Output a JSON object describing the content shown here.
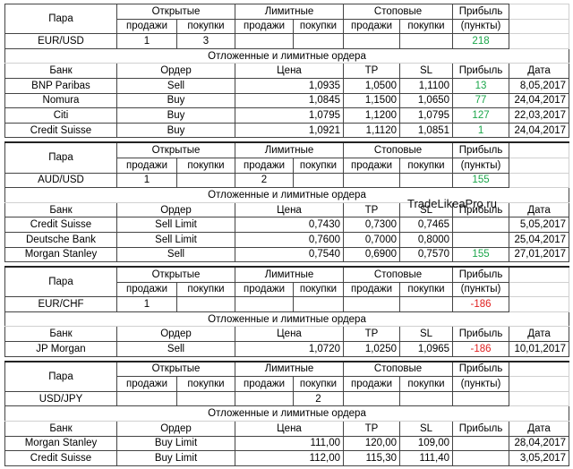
{
  "blocks": [
    {
      "header_row1": [
        "Пара",
        "Открытые",
        "Лимитные",
        "Стоповые",
        "Прибыль"
      ],
      "header_row2": [
        "продажи",
        "покупки",
        "продажи",
        "покупки",
        "продажи",
        "покупки",
        "(пункты)"
      ],
      "pair_row": [
        "EUR/USD",
        "1",
        "3",
        null,
        null,
        null,
        null,
        "218"
      ],
      "orders_title": "Отложенные и лимитные ордера",
      "orders_header": [
        "Банк",
        "Ордер",
        "Цена",
        "TP",
        "SL",
        "Прибыль",
        "Дата"
      ],
      "orders": [
        [
          "BNP Paribas",
          "Sell",
          "1,0935",
          "1,0500",
          "1,1100",
          "13",
          "8,05,2017"
        ],
        [
          "Nomura",
          "Buy",
          "1,0845",
          "1,1500",
          "1,0650",
          "77",
          "24,04,2017"
        ],
        [
          "Citi",
          "Buy",
          "1,0795",
          "1,1200",
          "1,0795",
          "127",
          "22,03,2017"
        ],
        [
          "Credit Suisse",
          "Buy",
          "1,0921",
          "1,1120",
          "1,0851",
          "1",
          "24,04,2017"
        ]
      ]
    },
    {
      "header_row1": [
        "Пара",
        "Открытые",
        "Лимитные",
        "Стоповые",
        "Прибыль"
      ],
      "header_row2": [
        "продажи",
        "покупки",
        "продажи",
        "покупки",
        "продажи",
        "покупки",
        "(пункты)"
      ],
      "pair_row": [
        "AUD/USD",
        "1",
        null,
        "2",
        null,
        null,
        null,
        "155"
      ],
      "orders_title": "Отложенные и лимитные ордера",
      "watermark": "TradeLikeaPro.ru",
      "orders_header": [
        "Банк",
        "Ордер",
        "Цена",
        "TP",
        "SL",
        "Прибыль",
        "Дата"
      ],
      "orders": [
        [
          "Credit Suisse",
          "Sell Limit",
          "0,7430",
          "0,7300",
          "0,7465",
          null,
          "5,05,2017"
        ],
        [
          "Deutsche Bank",
          "Sell Limit",
          "0,7600",
          "0,7000",
          "0,8000",
          null,
          "25,04,2017"
        ],
        [
          "Morgan Stanley",
          "Sell",
          "0,7540",
          "0,6900",
          "0,7570",
          "155",
          "27,01,2017"
        ]
      ]
    },
    {
      "header_row1": [
        "Пара",
        "Открытые",
        "Лимитные",
        "Стоповые",
        "Прибыль"
      ],
      "header_row2": [
        "продажи",
        "покупки",
        "продажи",
        "покупки",
        "продажи",
        "покупки",
        "(пункты)"
      ],
      "pair_row": [
        "EUR/CHF",
        "1",
        null,
        null,
        null,
        null,
        null,
        "-186"
      ],
      "orders_title": "Отложенные и лимитные ордера",
      "orders_header": [
        "Банк",
        "Ордер",
        "Цена",
        "TP",
        "SL",
        "Прибыль",
        "Дата"
      ],
      "orders": [
        [
          "JP Morgan",
          "Sell",
          "1,0720",
          "1,0250",
          "1,0965",
          "-186",
          "10,01,2017"
        ]
      ]
    },
    {
      "header_row1": [
        "Пара",
        "Открытые",
        "Лимитные",
        "Стоповые",
        "Прибыль"
      ],
      "header_row2": [
        "продажи",
        "покупки",
        "продажи",
        "покупки",
        "продажи",
        "покупки",
        "(пункты)"
      ],
      "pair_row": [
        "USD/JPY",
        null,
        null,
        null,
        "2",
        null,
        null,
        null
      ],
      "orders_title": "Отложенные и лимитные ордера",
      "orders_header": [
        "Банк",
        "Ордер",
        "Цена",
        "TP",
        "SL",
        "Прибыль",
        "Дата"
      ],
      "orders": [
        [
          "Morgan Stanley",
          "Buy Limit",
          "111,00",
          "120,00",
          "109,00",
          null,
          "28,04,2017"
        ],
        [
          "Credit Suisse",
          "Buy Limit",
          "112,00",
          "115,30",
          "111,40",
          null,
          "3,05,2017"
        ]
      ]
    }
  ]
}
